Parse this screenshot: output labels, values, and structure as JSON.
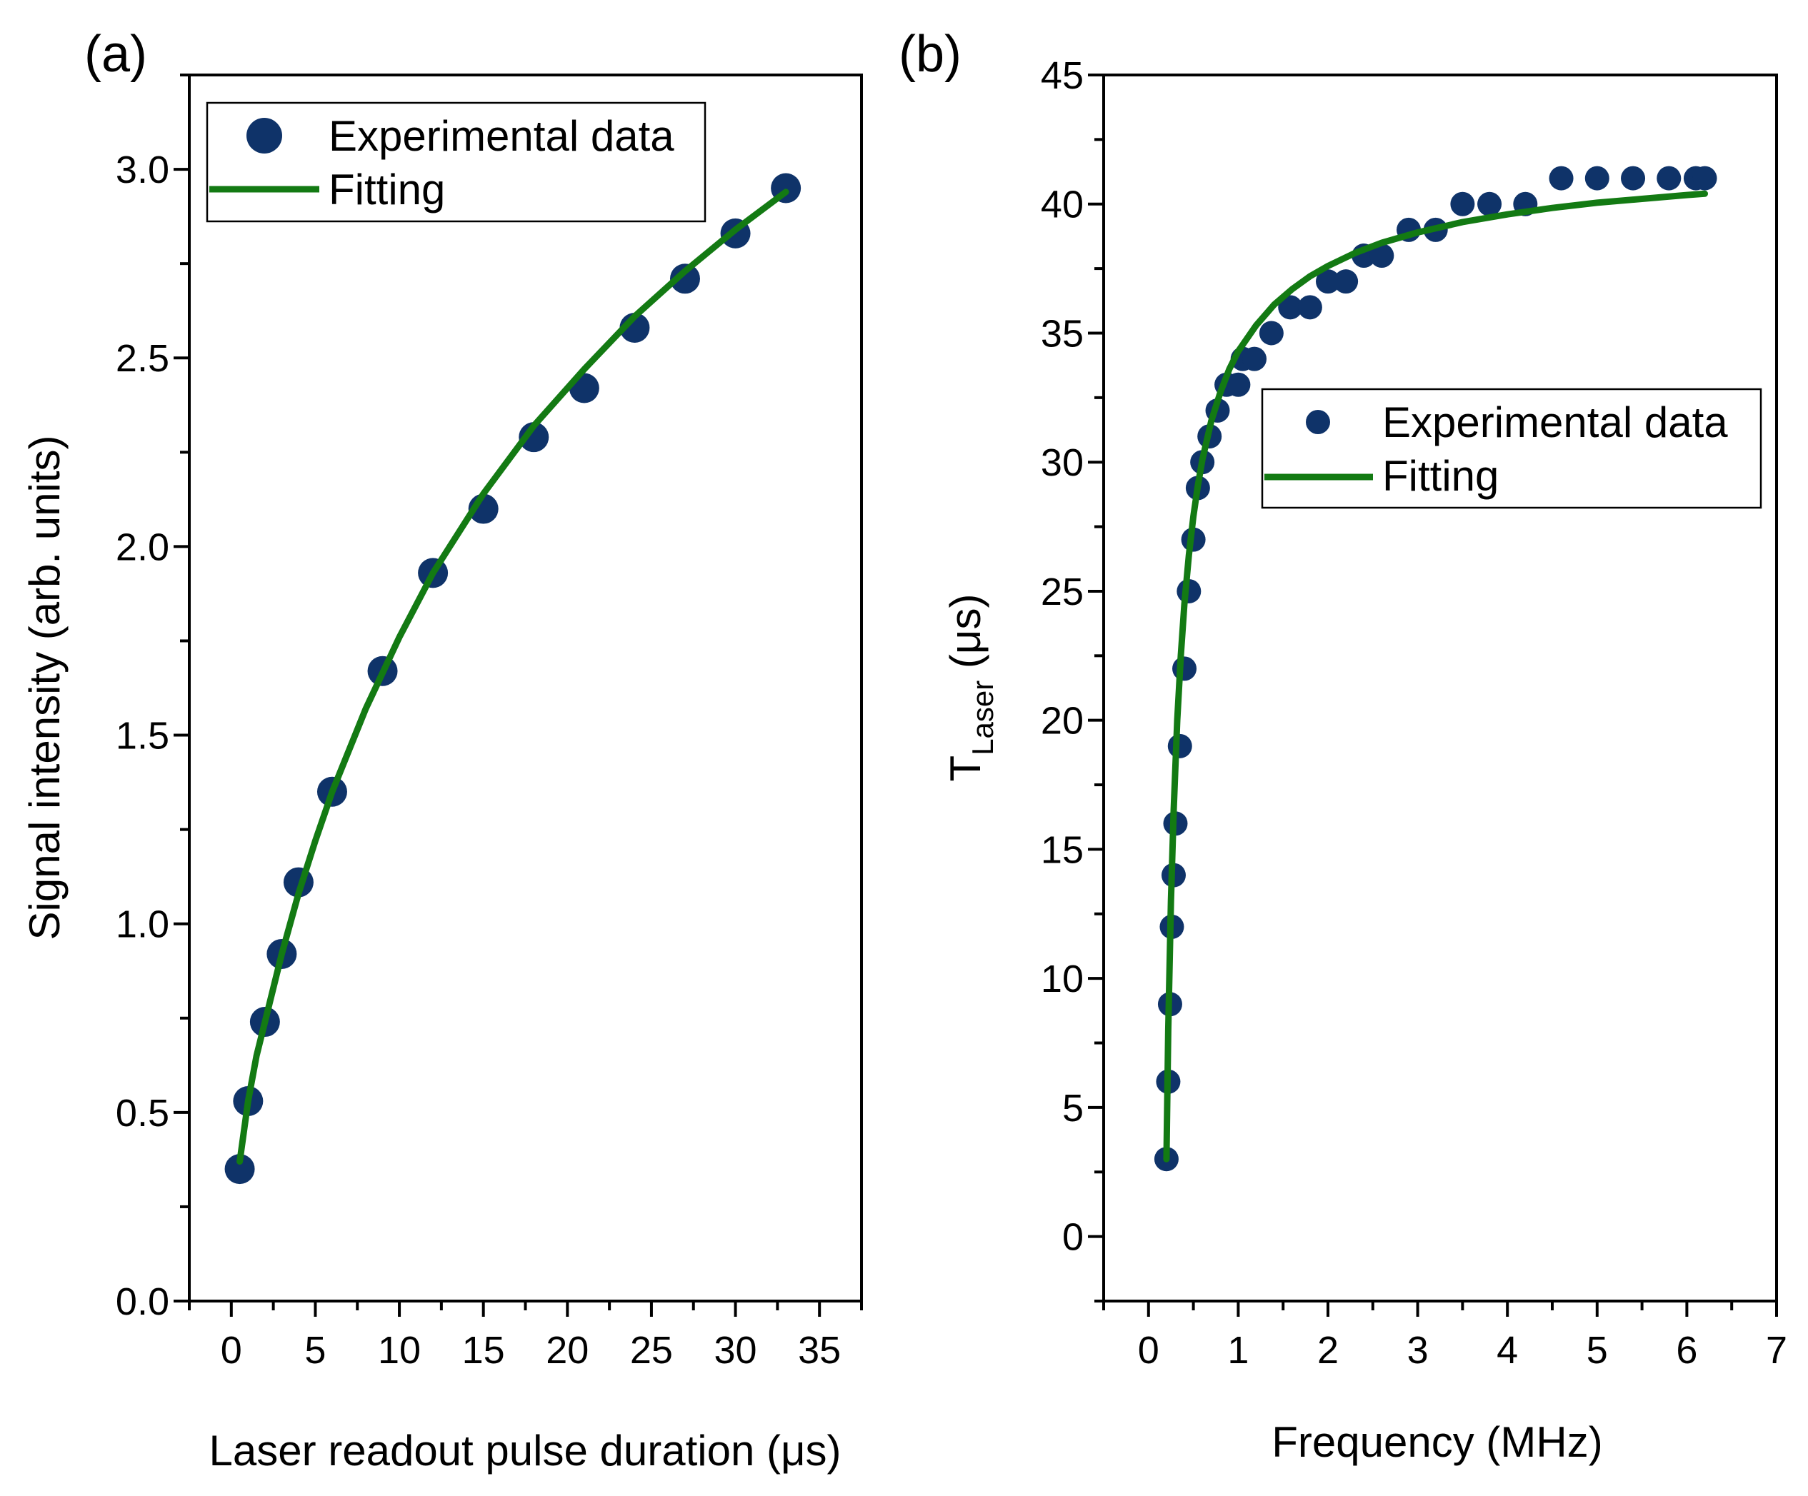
{
  "colors": {
    "marker": "#0f3369",
    "fit_line": "#137a13",
    "axis": "#000000",
    "background": "#ffffff"
  },
  "chart_data": [
    {
      "type": "scatter",
      "panel_label": "(a)",
      "xlabel": "Laser readout pulse duration (μs)",
      "ylabel": "Signal intensity (arb. units)",
      "xlim": [
        -2.5,
        37.5
      ],
      "ylim": [
        0,
        3.25
      ],
      "xticks": [
        0,
        5,
        10,
        15,
        20,
        25,
        30,
        35
      ],
      "xtick_labels": [
        "0",
        "5",
        "10",
        "15",
        "20",
        "25",
        "30",
        "35"
      ],
      "yticks": [
        0,
        0.5,
        1.0,
        1.5,
        2.0,
        2.5,
        3.0
      ],
      "ytick_labels": [
        "0.0",
        "0.5",
        "1.0",
        "1.5",
        "2.0",
        "2.5",
        "3.0"
      ],
      "legend": {
        "placement": "top-left",
        "entries": [
          "Experimental data",
          "Fitting"
        ]
      },
      "series": [
        {
          "name": "Experimental data",
          "kind": "markers",
          "x": [
            0.5,
            1,
            2,
            3,
            4,
            6,
            9,
            12,
            15,
            18,
            21,
            24,
            27,
            30,
            33
          ],
          "y": [
            0.35,
            0.53,
            0.74,
            0.92,
            1.11,
            1.35,
            1.67,
            1.93,
            2.1,
            2.29,
            2.42,
            2.58,
            2.71,
            2.83,
            2.95
          ]
        },
        {
          "name": "Fitting",
          "kind": "line",
          "x": [
            0.5,
            1,
            1.5,
            2,
            3,
            4,
            5,
            6,
            8,
            10,
            12,
            15,
            18,
            21,
            24,
            27,
            30,
            33
          ],
          "y": [
            0.37,
            0.53,
            0.65,
            0.74,
            0.92,
            1.08,
            1.22,
            1.35,
            1.57,
            1.76,
            1.93,
            2.14,
            2.32,
            2.47,
            2.61,
            2.73,
            2.84,
            2.94
          ]
        }
      ]
    },
    {
      "type": "scatter",
      "panel_label": "(b)",
      "xlabel": "Frequency (MHz)",
      "ylabel_main": "T",
      "ylabel_sub": "Laser",
      "ylabel_unit": " (μs)",
      "xlim": [
        -0.5,
        7
      ],
      "ylim": [
        -2.5,
        45
      ],
      "xticks": [
        0,
        1,
        2,
        3,
        4,
        5,
        6,
        7
      ],
      "xtick_labels": [
        "0",
        "1",
        "2",
        "3",
        "4",
        "5",
        "6",
        "7"
      ],
      "yticks": [
        0,
        5,
        10,
        15,
        20,
        25,
        30,
        35,
        40,
        45
      ],
      "ytick_labels": [
        "0",
        "5",
        "10",
        "15",
        "20",
        "25",
        "30",
        "35",
        "40",
        "45"
      ],
      "legend": {
        "placement": "center-right",
        "entries": [
          "Experimental data",
          "Fitting"
        ]
      },
      "series": [
        {
          "name": "Experimental data",
          "kind": "markers",
          "x": [
            0.2,
            0.22,
            0.24,
            0.26,
            0.28,
            0.3,
            0.35,
            0.4,
            0.45,
            0.5,
            0.55,
            0.6,
            0.68,
            0.77,
            0.87,
            1.0,
            1.05,
            1.18,
            1.37,
            1.58,
            1.8,
            2.0,
            2.2,
            2.4,
            2.6,
            2.9,
            3.2,
            3.5,
            3.8,
            4.2,
            4.6,
            5.0,
            5.4,
            5.8,
            6.1,
            6.2
          ],
          "y": [
            3,
            6,
            9,
            12,
            14,
            16,
            19,
            22,
            25,
            27,
            29,
            30,
            31,
            32,
            33,
            33,
            34,
            34,
            35,
            36,
            36,
            37,
            37,
            38,
            38,
            39,
            39,
            40,
            40,
            40,
            41,
            41,
            41,
            41,
            41,
            41
          ]
        },
        {
          "name": "Fitting",
          "kind": "line",
          "x": [
            0.2,
            0.22,
            0.25,
            0.28,
            0.32,
            0.36,
            0.4,
            0.45,
            0.5,
            0.55,
            0.6,
            0.7,
            0.8,
            0.9,
            1.0,
            1.2,
            1.4,
            1.6,
            1.8,
            2.0,
            2.3,
            2.6,
            3.0,
            3.5,
            4.0,
            4.5,
            5.0,
            5.5,
            6.0,
            6.2
          ],
          "y": [
            3,
            8,
            13,
            16.5,
            20,
            22.5,
            24.5,
            26.4,
            27.9,
            29.1,
            30.1,
            31.6,
            32.7,
            33.6,
            34.3,
            35.3,
            36.1,
            36.7,
            37.2,
            37.6,
            38.1,
            38.5,
            38.9,
            39.3,
            39.6,
            39.85,
            40.05,
            40.2,
            40.35,
            40.4
          ]
        }
      ]
    }
  ]
}
